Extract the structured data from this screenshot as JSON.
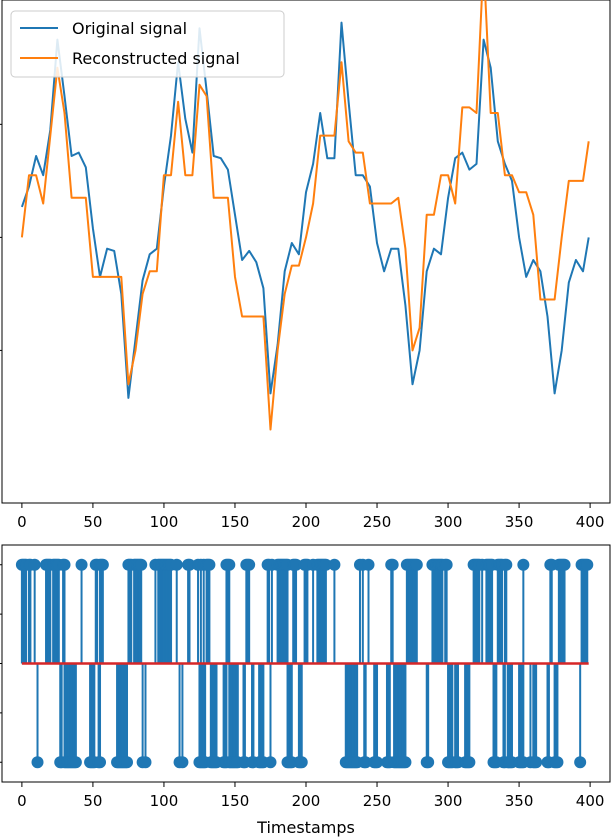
{
  "chart_data": [
    {
      "type": "line",
      "title": "",
      "xlabel": "",
      "ylabel": "",
      "xlim": [
        -14,
        414
      ],
      "ylim": [
        -2.35,
        2.1
      ],
      "x_ticks": [
        0,
        50,
        100,
        150,
        200,
        250,
        300,
        350,
        400
      ],
      "y_tick_values": [
        -1,
        0,
        1
      ],
      "y_tick_labels_shown": false,
      "grid": false,
      "legend_position": "top-left",
      "series": [
        {
          "name": "Original signal",
          "color": "#1f77b4",
          "x": [
            0,
            5,
            10,
            15,
            20,
            25,
            30,
            35,
            40,
            45,
            50,
            55,
            60,
            65,
            70,
            75,
            80,
            85,
            90,
            95,
            100,
            105,
            110,
            115,
            120,
            125,
            130,
            135,
            140,
            145,
            150,
            155,
            160,
            165,
            170,
            175,
            180,
            185,
            190,
            195,
            200,
            205,
            210,
            215,
            220,
            225,
            230,
            235,
            240,
            245,
            250,
            255,
            260,
            265,
            270,
            275,
            280,
            285,
            290,
            295,
            300,
            305,
            310,
            315,
            320,
            325,
            330,
            335,
            340,
            345,
            350,
            355,
            360,
            365,
            370,
            375,
            380,
            385,
            390,
            395,
            399
          ],
          "y": [
            0.27,
            0.45,
            0.72,
            0.55,
            0.95,
            1.75,
            1.25,
            0.72,
            0.75,
            0.62,
            0.08,
            -0.35,
            -0.1,
            -0.12,
            -0.5,
            -1.42,
            -0.9,
            -0.38,
            -0.15,
            -0.1,
            0.45,
            0.9,
            1.55,
            1.05,
            0.75,
            1.85,
            1.3,
            0.72,
            0.7,
            0.6,
            0.2,
            -0.2,
            -0.12,
            -0.22,
            -0.45,
            -1.38,
            -0.95,
            -0.3,
            -0.05,
            -0.15,
            0.4,
            0.65,
            1.1,
            0.7,
            0.7,
            1.9,
            1.2,
            0.55,
            0.55,
            0.45,
            -0.05,
            -0.3,
            -0.1,
            -0.1,
            -0.6,
            -1.3,
            -1.0,
            -0.3,
            -0.1,
            -0.15,
            0.35,
            0.7,
            0.75,
            0.6,
            0.65,
            1.75,
            1.5,
            0.85,
            0.65,
            0.5,
            0.0,
            -0.35,
            -0.2,
            -0.3,
            -0.7,
            -1.38,
            -1.0,
            -0.4,
            -0.2,
            -0.3,
            0.0
          ]
        },
        {
          "name": "Reconstructed signal",
          "color": "#ff7f0e",
          "x": [
            0,
            5,
            10,
            15,
            20,
            25,
            30,
            35,
            40,
            45,
            50,
            55,
            60,
            65,
            70,
            75,
            80,
            85,
            90,
            95,
            100,
            105,
            110,
            115,
            120,
            125,
            130,
            135,
            140,
            145,
            150,
            155,
            160,
            165,
            170,
            175,
            180,
            185,
            190,
            195,
            200,
            205,
            210,
            215,
            220,
            225,
            230,
            235,
            240,
            245,
            250,
            255,
            260,
            265,
            270,
            275,
            280,
            285,
            290,
            295,
            300,
            305,
            310,
            315,
            320,
            325,
            330,
            335,
            340,
            345,
            350,
            355,
            360,
            365,
            370,
            375,
            380,
            385,
            390,
            395,
            399
          ],
          "y": [
            0.0,
            0.55,
            0.55,
            0.3,
            0.9,
            1.5,
            1.1,
            0.35,
            0.35,
            0.35,
            -0.35,
            -0.35,
            -0.35,
            -0.35,
            -0.35,
            -1.3,
            -1.0,
            -0.5,
            -0.3,
            -0.3,
            0.55,
            0.55,
            1.2,
            0.55,
            0.55,
            1.35,
            1.25,
            0.35,
            0.35,
            0.35,
            -0.35,
            -0.7,
            -0.7,
            -0.7,
            -0.7,
            -1.7,
            -1.0,
            -0.5,
            -0.25,
            -0.25,
            0.0,
            0.3,
            0.9,
            0.9,
            0.9,
            1.55,
            0.85,
            0.75,
            0.75,
            0.3,
            0.3,
            0.3,
            0.3,
            0.35,
            -0.1,
            -1.0,
            -0.8,
            0.2,
            0.2,
            0.55,
            0.55,
            0.3,
            1.15,
            1.15,
            1.1,
            2.45,
            1.1,
            1.1,
            0.55,
            0.55,
            0.4,
            0.4,
            0.2,
            -0.55,
            -0.55,
            -0.55,
            0.0,
            0.5,
            0.5,
            0.5,
            0.85
          ]
        }
      ]
    },
    {
      "type": "scatter",
      "title": "",
      "xlabel": "Timestamps",
      "ylabel": "",
      "xlim": [
        -14,
        414
      ],
      "ylim": [
        -1.2,
        1.2
      ],
      "x_ticks": [
        0,
        50,
        100,
        150,
        200,
        250,
        300,
        350,
        400
      ],
      "y_tick_values": [
        -1,
        -0.5,
        0,
        0.5,
        1
      ],
      "y_tick_labels_shown": false,
      "grid": false,
      "stem": true,
      "baseline": {
        "value": 0,
        "color": "#d62728"
      },
      "series": [
        {
          "color": "#1f77b4",
          "positive_x": [
            0,
            1,
            2,
            3,
            5,
            6,
            9,
            17,
            18,
            19,
            20,
            22,
            23,
            24,
            25,
            26,
            29,
            30,
            42,
            52,
            53,
            55,
            56,
            57,
            75,
            76,
            77,
            79,
            80,
            81,
            82,
            83,
            84,
            94,
            96,
            97,
            98,
            99,
            100,
            101,
            102,
            103,
            104,
            105,
            109,
            117,
            118,
            124,
            126,
            128,
            130,
            131,
            132,
            144,
            145,
            146,
            158,
            159,
            160,
            173,
            174,
            176,
            180,
            181,
            182,
            183,
            184,
            185,
            186,
            187,
            191,
            192,
            193,
            199,
            200,
            201,
            205,
            208,
            209,
            210,
            211,
            212,
            213,
            214,
            220,
            238,
            240,
            244,
            260,
            261,
            271,
            272,
            273,
            274,
            275,
            276,
            277,
            278,
            289,
            290,
            291,
            292,
            293,
            294,
            295,
            296,
            298,
            299,
            318,
            319,
            320,
            321,
            322,
            324,
            327,
            328,
            329,
            330,
            331,
            335,
            336,
            337,
            338,
            340,
            341,
            353,
            372,
            373,
            378,
            379,
            380,
            381,
            382,
            394,
            395,
            396,
            397,
            398
          ],
          "negative_x": [
            11,
            27,
            28,
            30,
            31,
            32,
            33,
            34,
            35,
            36,
            37,
            38,
            48,
            49,
            50,
            51,
            54,
            55,
            67,
            68,
            69,
            70,
            71,
            72,
            73,
            74,
            85,
            87,
            111,
            113,
            125,
            126,
            127,
            128,
            129,
            133,
            134,
            135,
            136,
            137,
            142,
            143,
            144,
            146,
            147,
            148,
            149,
            150,
            151,
            152,
            156,
            157,
            162,
            163,
            167,
            168,
            169,
            170,
            175,
            187,
            188,
            189,
            190,
            195,
            196,
            197,
            228,
            229,
            230,
            231,
            232,
            233,
            234,
            235,
            236,
            241,
            242,
            248,
            249,
            250,
            257,
            258,
            259,
            262,
            263,
            264,
            265,
            266,
            267,
            268,
            269,
            270,
            285,
            286,
            300,
            301,
            302,
            303,
            305,
            306,
            307,
            312,
            313,
            314,
            315,
            332,
            333,
            334,
            339,
            340,
            342,
            343,
            344,
            345,
            350,
            351,
            352,
            353,
            358,
            360,
            361,
            362,
            370,
            371,
            375,
            376,
            377,
            393
          ]
        }
      ]
    }
  ],
  "legend": [
    {
      "label": "Original signal",
      "color": "#1f77b4"
    },
    {
      "label": "Reconstructed signal",
      "color": "#ff7f0e"
    }
  ]
}
